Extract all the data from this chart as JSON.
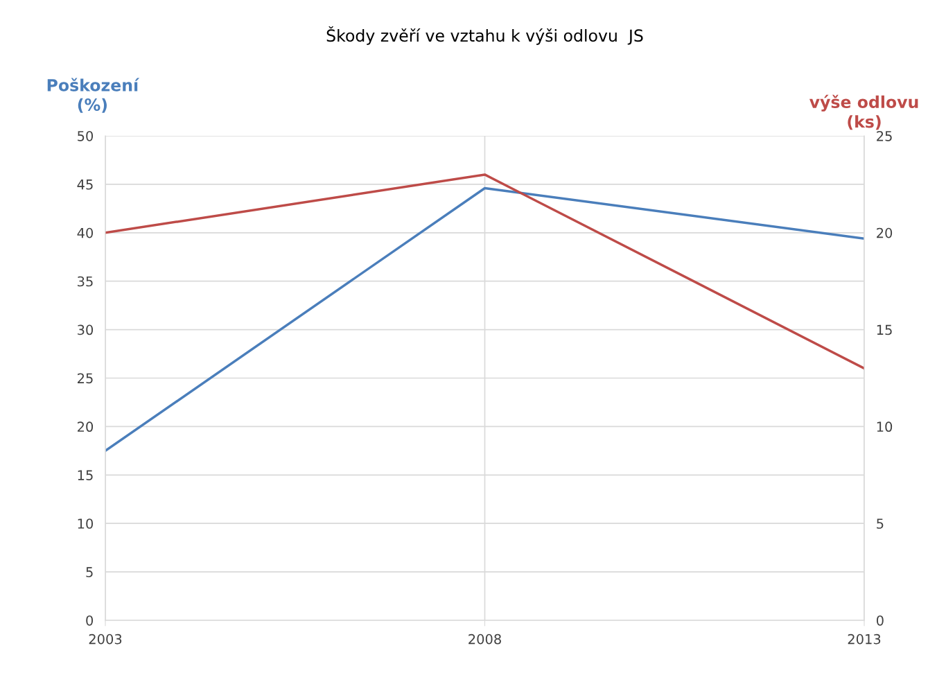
{
  "chart_data": {
    "type": "line",
    "title": "Škody zvěří ve vztahu k výši odlovu  JS",
    "ylabel": "Poškození\n(%)",
    "y2label": "výše odlovu\n(ks)",
    "x": [
      2003,
      2008,
      2013
    ],
    "xlim": [
      2003,
      2013
    ],
    "xticks": [
      2003,
      2008,
      2013
    ],
    "ylim": [
      0,
      50
    ],
    "yticks": [
      0,
      5,
      10,
      15,
      20,
      25,
      30,
      35,
      40,
      45,
      50
    ],
    "y2lim": [
      0,
      25
    ],
    "y2ticks": [
      0,
      5,
      10,
      15,
      20,
      25
    ],
    "grid": true,
    "legend": false,
    "marker": "none",
    "line_style": "solid",
    "series": [
      {
        "color": "#4a7ebb",
        "values": [
          17.5,
          44.6,
          39.4
        ]
      },
      {
        "color": "#be4b48",
        "values": [
          20.0,
          23.0,
          13.0
        ],
        "axis": "y2"
      }
    ]
  }
}
